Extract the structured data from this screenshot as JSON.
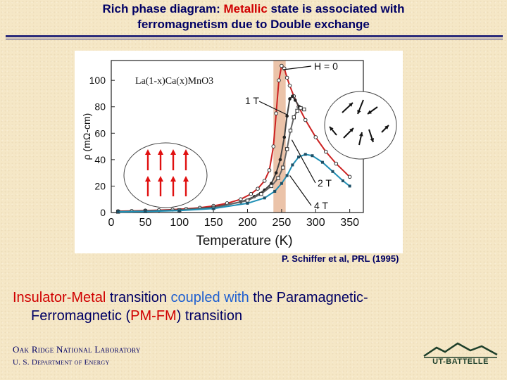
{
  "slide": {
    "title_line1_a": "Rich phase diagram: ",
    "title_line1_b": "Metallic",
    "title_line1_c": " state is associated with",
    "title_line2": "ferromagnetism due to Double exchange",
    "citation": "P. Schiffer et al, PRL (1995)",
    "caption": {
      "p1": "Insulator-Metal",
      "p2": " transition ",
      "p3": "coupled with",
      "p4": " the Paramagnetic-",
      "p5": "Ferromagnetic (",
      "p6": "PM-FM",
      "p7": ") transition"
    },
    "org_line1": "Oak Ridge National Laboratory",
    "org_line2": "U. S. Department of Energy",
    "logo_text": "UT-BATTELLE"
  },
  "colors": {
    "title": "#000064",
    "highlight_red": "#d00000",
    "highlight_blue": "#1e5fd0",
    "series_h0": "#cc2222",
    "series_4t": "#1f8fb5",
    "band": "#e8b89a",
    "spin_arrow_fm": "#e01010"
  },
  "chart_data": {
    "type": "line",
    "title": "",
    "inset_label": "La(1-x)Ca(x)MnO3",
    "xlabel": "Temperature (K)",
    "ylabel": "ρ (mΩ-cm)",
    "xlim": [
      0,
      370
    ],
    "ylim": [
      0,
      115
    ],
    "x_ticks": [
      0,
      50,
      100,
      150,
      200,
      250,
      300,
      350
    ],
    "y_ticks": [
      0,
      20,
      40,
      60,
      80,
      100
    ],
    "highlight_band": [
      238,
      256
    ],
    "grid": false,
    "legend": "none",
    "series": [
      {
        "name": "H = 0",
        "x": [
          10,
          30,
          50,
          70,
          90,
          110,
          130,
          150,
          170,
          190,
          205,
          215,
          225,
          232,
          238,
          242,
          246,
          250,
          254,
          258,
          262,
          268,
          275,
          285,
          300,
          315,
          330,
          350
        ],
        "y": [
          1,
          1.2,
          1.5,
          1.8,
          2.2,
          2.8,
          3.6,
          5,
          7,
          10,
          14,
          18,
          24,
          32,
          50,
          75,
          100,
          111,
          109,
          102,
          96,
          88,
          80,
          70,
          57,
          46,
          37,
          27
        ]
      },
      {
        "name": "1 T",
        "x": [
          10,
          50,
          100,
          150,
          190,
          210,
          225,
          235,
          242,
          248,
          254,
          258,
          262,
          266,
          270,
          276
        ],
        "y": [
          0.8,
          1.2,
          2,
          4,
          8,
          12,
          17,
          22,
          30,
          40,
          57,
          73,
          86,
          88,
          85,
          80
        ]
      },
      {
        "name": "2 T",
        "x": [
          10,
          50,
          100,
          150,
          200,
          220,
          235,
          245,
          252,
          258,
          263,
          268,
          273,
          278,
          283
        ],
        "y": [
          0.6,
          1,
          1.8,
          3.5,
          9,
          14,
          20,
          26,
          34,
          48,
          62,
          72,
          77,
          79,
          78
        ]
      },
      {
        "name": "4 T",
        "x": [
          10,
          50,
          100,
          150,
          200,
          225,
          240,
          250,
          258,
          266,
          275,
          285,
          295,
          310,
          325,
          340,
          350
        ],
        "y": [
          0.5,
          0.8,
          1.5,
          3,
          7,
          11,
          16,
          22,
          28,
          36,
          42,
          44,
          43,
          38,
          31,
          24,
          20
        ]
      }
    ],
    "annotations": [
      "H = 0",
      "1 T",
      "2 T",
      "4 T"
    ]
  }
}
